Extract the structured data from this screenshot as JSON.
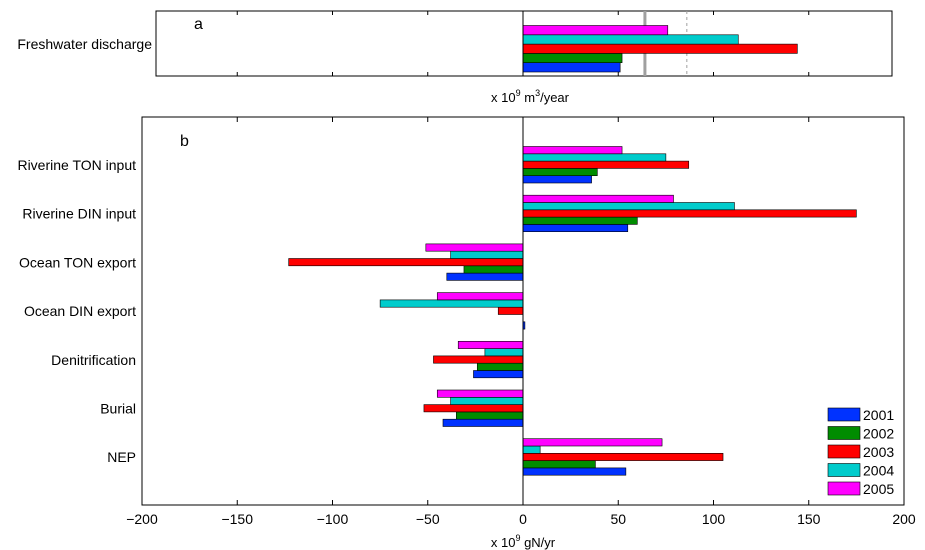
{
  "colors": {
    "2001": "#0032ff",
    "2002": "#008c00",
    "2003": "#ff0000",
    "2004": "#00cccc",
    "2005": "#ff00ff",
    "mean_line": "#a0a0a0",
    "axis": "#000000"
  },
  "chart_data": [
    {
      "id": "a",
      "type": "bar",
      "orientation": "horizontal",
      "panel_label": "a",
      "xlabel_prefix": "x 10",
      "xlabel_exp": "9",
      "xlabel_mid": " m",
      "xlabel_exp2": "3",
      "xlabel_suffix": "/year",
      "xlim": [
        0,
        150
      ],
      "categories": [
        "Freshwater discharge"
      ],
      "series": [
        {
          "name": "2001",
          "values": [
            51
          ]
        },
        {
          "name": "2002",
          "values": [
            52
          ]
        },
        {
          "name": "2003",
          "values": [
            144
          ]
        },
        {
          "name": "2004",
          "values": [
            113
          ]
        },
        {
          "name": "2005",
          "values": [
            76
          ]
        }
      ],
      "reference_lines": [
        {
          "value": 64,
          "style": "solid"
        },
        {
          "value": 86,
          "style": "dashed"
        }
      ]
    },
    {
      "id": "b",
      "type": "bar",
      "orientation": "horizontal",
      "panel_label": "b",
      "xlabel_prefix": "x 10",
      "xlabel_exp": "9",
      "xlabel_suffix": " gN/yr",
      "xlim": [
        -200,
        200
      ],
      "xticks": [
        -200,
        -150,
        -100,
        -50,
        0,
        50,
        100,
        150,
        200
      ],
      "xtick_labels": [
        "−200",
        "−150",
        "−100",
        "−50",
        "0",
        "50",
        "100",
        "150",
        "200"
      ],
      "categories": [
        "Riverine TON input",
        "Riverine DIN input",
        "Ocean TON export",
        "Ocean DIN export",
        "Denitrification",
        "Burial",
        "NEP"
      ],
      "series": [
        {
          "name": "2001",
          "values": [
            36,
            55,
            -40,
            1,
            -26,
            -42,
            54
          ]
        },
        {
          "name": "2002",
          "values": [
            39,
            60,
            -31,
            0,
            -24,
            -35,
            38
          ]
        },
        {
          "name": "2003",
          "values": [
            87,
            175,
            -123,
            -13,
            -47,
            -52,
            105
          ]
        },
        {
          "name": "2004",
          "values": [
            75,
            111,
            -38,
            -75,
            -20,
            -38,
            9
          ]
        },
        {
          "name": "2005",
          "values": [
            52,
            79,
            -51,
            -45,
            -34,
            -45,
            73
          ]
        }
      ],
      "legend_position": "bottom-right"
    }
  ]
}
